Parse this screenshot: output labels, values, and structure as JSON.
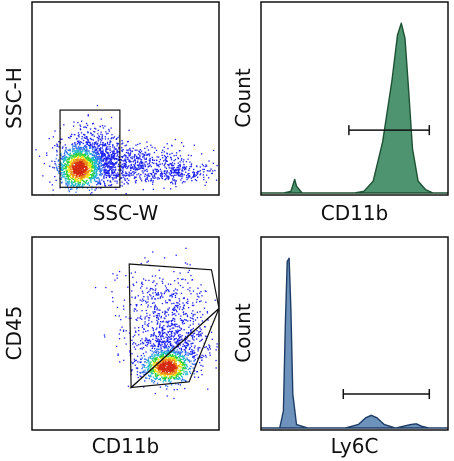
{
  "chart_data": [
    {
      "type": "scatter",
      "plot": "density-dot-plot",
      "xlabel": "SSC-W",
      "ylabel": "SSC-H",
      "xlim": [
        0,
        1
      ],
      "ylim": [
        0,
        1
      ],
      "gate": {
        "shape": "rectangle",
        "x": [
          0.15,
          0.47
        ],
        "y": [
          0.04,
          0.44
        ]
      },
      "populations": [
        {
          "cx": 0.25,
          "cy": 0.14,
          "sx": 0.05,
          "sy": 0.05,
          "n": 900
        },
        {
          "cx": 0.32,
          "cy": 0.2,
          "sx": 0.09,
          "sy": 0.08,
          "n": 800
        },
        {
          "cx": 0.5,
          "cy": 0.16,
          "sx": 0.17,
          "sy": 0.05,
          "n": 700
        },
        {
          "cx": 0.78,
          "cy": 0.12,
          "sx": 0.12,
          "sy": 0.03,
          "n": 250
        }
      ]
    },
    {
      "type": "area",
      "plot": "histogram",
      "xlabel": "CD11b",
      "ylabel": "Count",
      "color": "#4e9470",
      "stroke": "#1d5234",
      "xlim": [
        0,
        1
      ],
      "ylim": [
        0,
        1
      ],
      "curve": [
        [
          0.0,
          0.0
        ],
        [
          0.12,
          0.0
        ],
        [
          0.16,
          0.01
        ],
        [
          0.18,
          0.08
        ],
        [
          0.19,
          0.04
        ],
        [
          0.22,
          0.0
        ],
        [
          0.5,
          0.0
        ],
        [
          0.55,
          0.01
        ],
        [
          0.6,
          0.07
        ],
        [
          0.65,
          0.3
        ],
        [
          0.7,
          0.66
        ],
        [
          0.73,
          0.93
        ],
        [
          0.75,
          1.0
        ],
        [
          0.77,
          0.91
        ],
        [
          0.79,
          0.6
        ],
        [
          0.81,
          0.26
        ],
        [
          0.84,
          0.07
        ],
        [
          0.88,
          0.02
        ],
        [
          0.92,
          0.0
        ],
        [
          1.0,
          0.0
        ]
      ],
      "marker_range": [
        0.47,
        0.9
      ],
      "marker_level": 0.37
    },
    {
      "type": "scatter",
      "plot": "density-dot-plot",
      "xlabel": "CD11b",
      "ylabel": "CD45",
      "xlim": [
        0,
        1
      ],
      "ylim": [
        0,
        1
      ],
      "gates": [
        {
          "shape": "polygon",
          "points": [
            [
              0.52,
              0.86
            ],
            [
              0.96,
              0.83
            ],
            [
              1.0,
              0.63
            ],
            [
              0.53,
              0.22
            ]
          ]
        },
        {
          "shape": "polygon",
          "points": [
            [
              0.53,
              0.22
            ],
            [
              1.0,
              0.63
            ],
            [
              0.84,
              0.25
            ]
          ]
        }
      ],
      "populations": [
        {
          "cx": 0.72,
          "cy": 0.33,
          "sx": 0.06,
          "sy": 0.04,
          "n": 1000
        },
        {
          "cx": 0.75,
          "cy": 0.45,
          "sx": 0.11,
          "sy": 0.08,
          "n": 650
        },
        {
          "cx": 0.7,
          "cy": 0.66,
          "sx": 0.12,
          "sy": 0.1,
          "n": 350
        }
      ]
    },
    {
      "type": "area",
      "plot": "histogram",
      "xlabel": "Ly6C",
      "ylabel": "Count",
      "color": "#6d93bd",
      "stroke": "#1e3d66",
      "xlim": [
        0,
        1
      ],
      "ylim": [
        0,
        1
      ],
      "curve": [
        [
          0.0,
          0.0
        ],
        [
          0.1,
          0.0
        ],
        [
          0.12,
          0.1
        ],
        [
          0.13,
          0.6
        ],
        [
          0.14,
          0.98
        ],
        [
          0.15,
          1.0
        ],
        [
          0.16,
          0.7
        ],
        [
          0.17,
          0.2
        ],
        [
          0.19,
          0.02
        ],
        [
          0.25,
          0.0
        ],
        [
          0.45,
          0.0
        ],
        [
          0.52,
          0.02
        ],
        [
          0.56,
          0.06
        ],
        [
          0.59,
          0.075
        ],
        [
          0.62,
          0.06
        ],
        [
          0.66,
          0.02
        ],
        [
          0.72,
          0.0
        ],
        [
          0.76,
          0.01
        ],
        [
          0.8,
          0.02
        ],
        [
          0.83,
          0.025
        ],
        [
          0.86,
          0.01
        ],
        [
          0.9,
          0.0
        ],
        [
          1.0,
          0.0
        ]
      ],
      "marker_range": [
        0.44,
        0.9
      ],
      "marker_level": 0.2
    }
  ]
}
